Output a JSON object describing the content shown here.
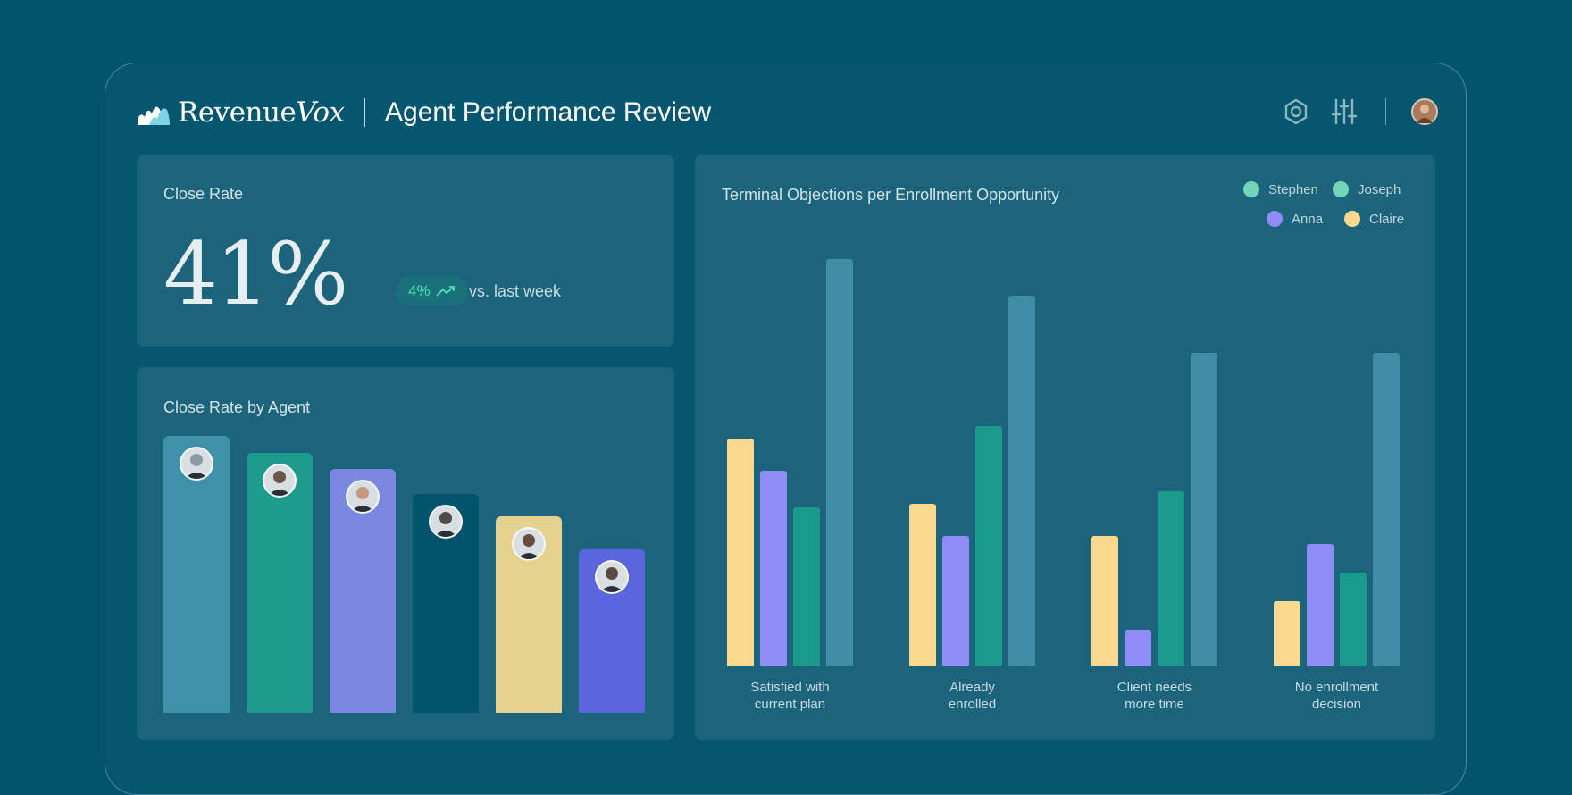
{
  "header": {
    "brand_plain": "Revenue",
    "brand_italic": "Vox",
    "page_title": "Agent Performance Review",
    "icons": [
      "hexagon-settings-icon",
      "sliders-icon",
      "user-avatar"
    ]
  },
  "close_rate": {
    "title": "Close Rate",
    "value": "41%",
    "change": "4%",
    "change_suffix": "vs. last week",
    "change_color": "#4ee0b0"
  },
  "close_rate_by_agent": {
    "title": "Close Rate by Agent",
    "agents": [
      {
        "value": 100,
        "color": "#3f91a9",
        "avatar_color": "#8d9aa3"
      },
      {
        "value": 94,
        "color": "#1d9b8c",
        "avatar_color": "#6b5647"
      },
      {
        "value": 88,
        "color": "#7a87e0",
        "avatar_color": "#c79a80"
      },
      {
        "value": 79,
        "color": "#02546c",
        "avatar_color": "#4d4a4a"
      },
      {
        "value": 71,
        "color": "#e5d28f",
        "avatar_color": "#6a4a3a"
      },
      {
        "value": 59,
        "color": "#5c66dc",
        "avatar_color": "#5a4a40"
      }
    ]
  },
  "chart_data": {
    "type": "bar",
    "title": "Terminal Objections per Enrollment Opportunity",
    "categories": [
      {
        "line1": "Satisfied with",
        "line2": "current plan"
      },
      {
        "line1": "Already",
        "line2": "enrolled"
      },
      {
        "line1": "Client needs",
        "line2": "more time"
      },
      {
        "line1": "No enrollment",
        "line2": "decision"
      }
    ],
    "series": [
      {
        "name": "Claire",
        "color": "#f8d98e",
        "values": [
          56,
          40,
          32,
          16
        ]
      },
      {
        "name": "Anna",
        "color": "#8f8cf8",
        "values": [
          48,
          32,
          9,
          30
        ]
      },
      {
        "name": "Joseph",
        "color": "#1a9a8c",
        "values": [
          39,
          59,
          43,
          23
        ]
      },
      {
        "name": "Stephen",
        "color": "#3f8ea6",
        "values": [
          100,
          91,
          77,
          77
        ]
      }
    ],
    "legend": [
      {
        "name": "Stephen",
        "color": "#74d6b9"
      },
      {
        "name": "Joseph",
        "color": "#74d6b9"
      },
      {
        "name": "Anna",
        "color": "#8f8cf8"
      },
      {
        "name": "Claire",
        "color": "#f8d98e"
      }
    ],
    "ylim": [
      0,
      100
    ],
    "legend_position": "top-right"
  }
}
